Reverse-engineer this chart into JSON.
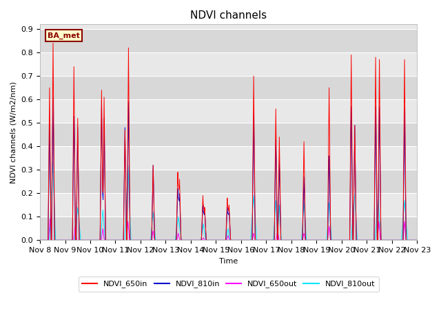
{
  "title": "NDVI channels",
  "xlabel": "Time",
  "ylabel": "NDVI channels (W/m2/nm)",
  "ylim": [
    0.0,
    0.92
  ],
  "yticks": [
    0.0,
    0.1,
    0.2,
    0.3,
    0.4,
    0.5,
    0.6,
    0.7,
    0.8,
    0.9
  ],
  "bg_color": "#e8e8e8",
  "fig_color": "#ffffff",
  "label_text": "BA_met",
  "label_bg": "#ffffcc",
  "label_border": "#8b0000",
  "colors": {
    "ndvi_650in": "#ff0000",
    "ndvi_810in": "#0000cc",
    "ndvi_650out": "#ff00ff",
    "ndvi_810out": "#00e5ff"
  },
  "legend": [
    "NDVI_650in",
    "NDVI_810in",
    "NDVI_650out",
    "NDVI_810out"
  ],
  "days": [
    "Nov 8",
    "Nov 9",
    "Nov 10",
    "Nov 11",
    "Nov 12",
    "Nov 13",
    "Nov 14",
    "Nov 15",
    "Nov 16",
    "Nov 17",
    "Nov 18",
    "Nov 19",
    "Nov 20",
    "Nov 21",
    "Nov 22",
    "Nov 23"
  ],
  "linewidth": 0.7,
  "title_fontsize": 11,
  "axis_fontsize": 8,
  "ylabel_fontsize": 8
}
